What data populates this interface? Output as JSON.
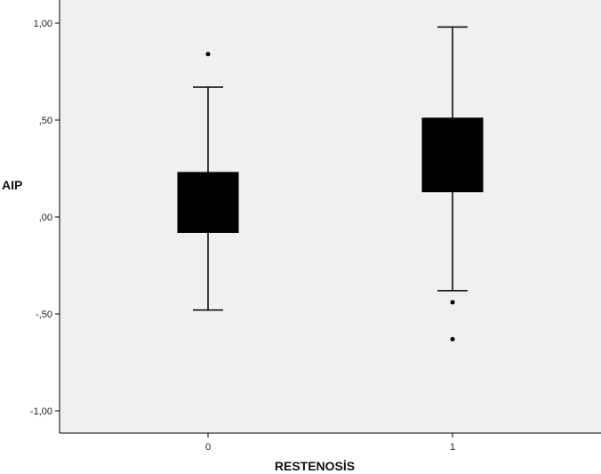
{
  "chart_data": {
    "type": "boxplot",
    "title": "",
    "xlabel": "RESTENOSİS",
    "ylabel": "AIP",
    "ylim": [
      -1.1,
      1.1
    ],
    "yticks": [
      1.0,
      0.5,
      0.0,
      -0.5,
      -1.0
    ],
    "ytick_labels": [
      "1,00",
      ",50",
      ",00",
      "-,50",
      "-1,00"
    ],
    "categories": [
      "0",
      "1"
    ],
    "boxes": [
      {
        "category": "0",
        "whisker_low": -0.48,
        "q1": -0.08,
        "median": 0.08,
        "q3": 0.23,
        "whisker_high": 0.67,
        "outliers": [
          0.84
        ]
      },
      {
        "category": "1",
        "whisker_low": -0.38,
        "q1": 0.13,
        "median": 0.35,
        "q3": 0.51,
        "whisker_high": 0.98,
        "outliers": [
          -0.44,
          -0.63
        ]
      }
    ],
    "box_color": "#000000",
    "plot_background": "#f0f0f0",
    "grid": false
  }
}
